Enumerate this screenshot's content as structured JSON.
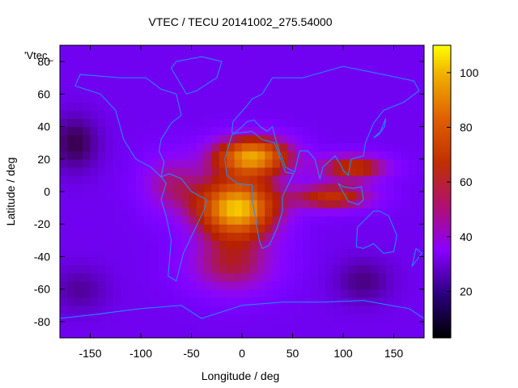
{
  "chart_data": {
    "type": "heatmap",
    "title": "VTEC / TECU 20141002_275.54000",
    "xlabel": "Longitude / deg",
    "ylabel": "Latitude / deg",
    "xlim": [
      -180,
      180
    ],
    "ylim": [
      -90,
      90
    ],
    "xticks": [
      -150,
      -100,
      -50,
      0,
      50,
      100,
      150
    ],
    "yticks": [
      -80,
      -60,
      -40,
      -20,
      0,
      20,
      40,
      60,
      80
    ],
    "colorbar": {
      "range": [
        3,
        110
      ],
      "ticks": [
        20,
        40,
        60,
        80,
        100
      ]
    },
    "legend_entry": "'Vtec_",
    "features": [
      {
        "name": "peak-south-america-atlantic",
        "lon": -5,
        "lat": -10,
        "value": 105
      },
      {
        "name": "peak-north-africa",
        "lon": 10,
        "lat": 22,
        "value": 98
      },
      {
        "name": "crest-indian-ocean-north",
        "lon": 110,
        "lat": 15,
        "value": 70
      },
      {
        "name": "crest-indian-ocean-south",
        "lon": 90,
        "lat": -3,
        "value": 68
      },
      {
        "name": "south-atlantic-lobe",
        "lon": -10,
        "lat": -45,
        "value": 55
      },
      {
        "name": "background-pacific",
        "lon": -150,
        "lat": 0,
        "value": 28
      },
      {
        "name": "minimum-north-pacific",
        "lon": -165,
        "lat": 30,
        "value": 8
      },
      {
        "name": "minimum-south-indian",
        "lon": 120,
        "lat": -55,
        "value": 10
      }
    ]
  }
}
